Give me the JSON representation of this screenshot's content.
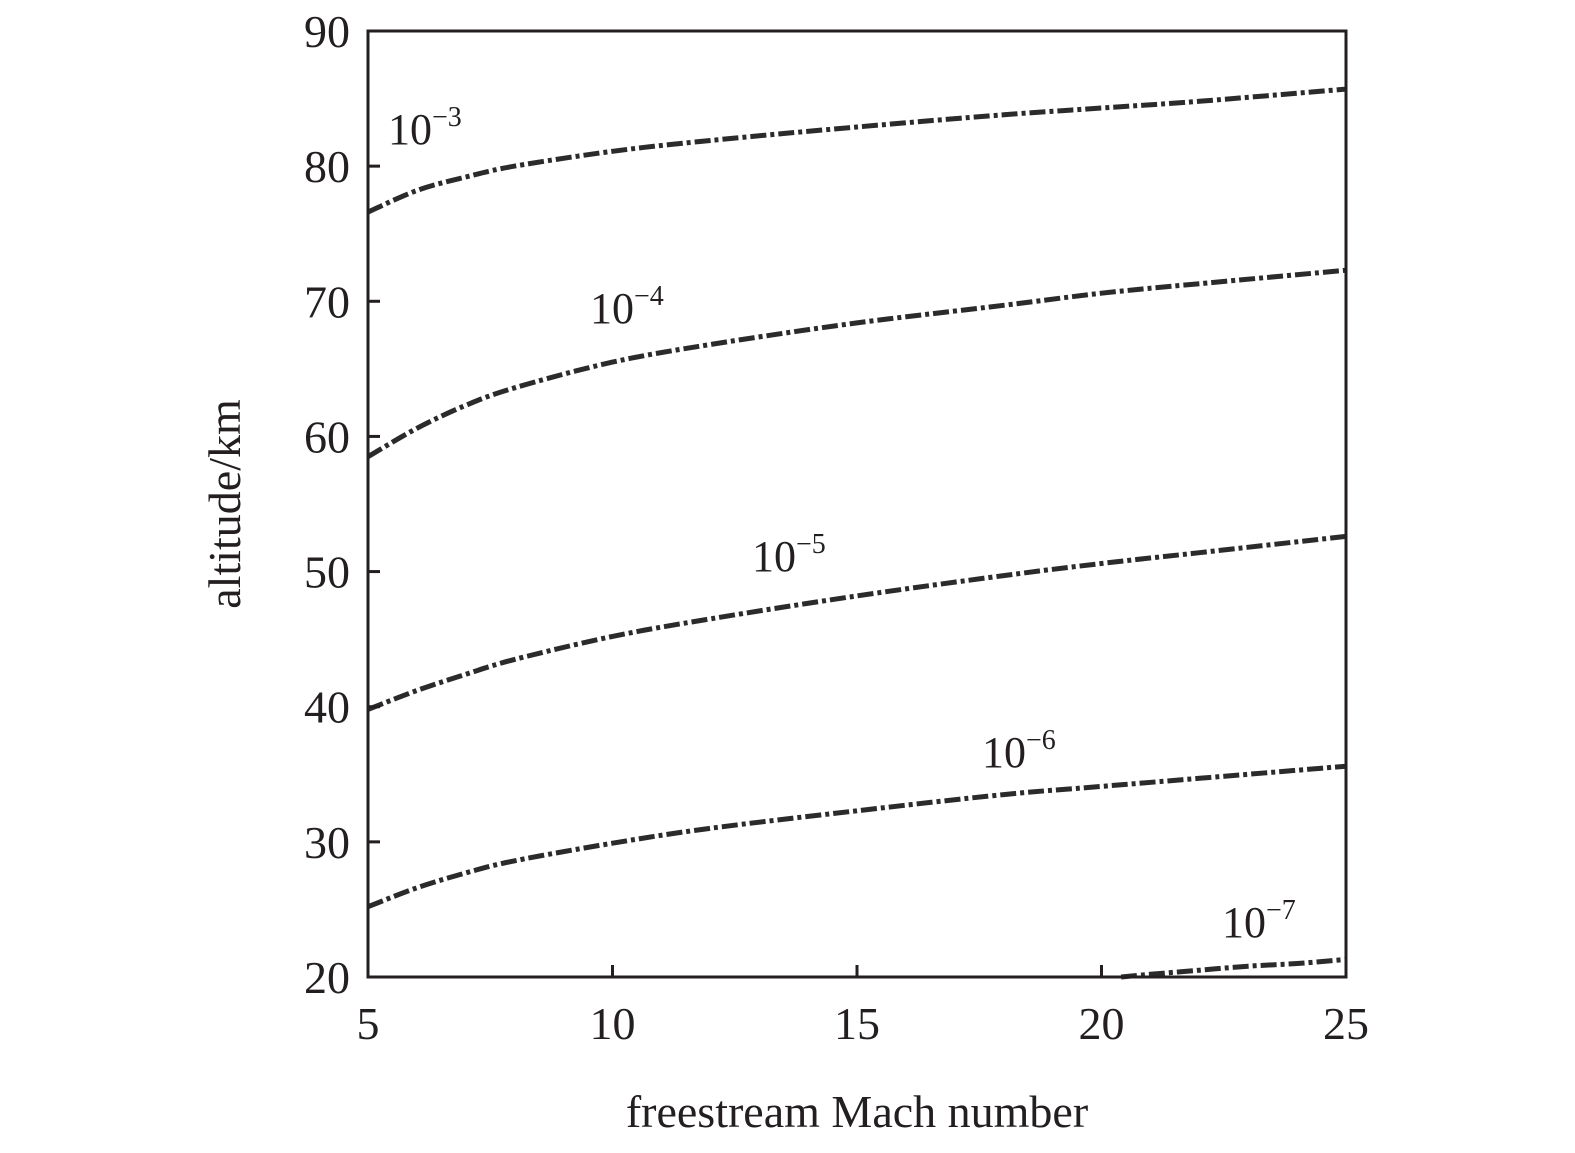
{
  "chart_data": {
    "type": "line",
    "xlabel": "freestream Mach number",
    "ylabel": "altitude/km",
    "xlim": [
      5,
      25
    ],
    "ylim": [
      20,
      90
    ],
    "xticks": [
      5,
      10,
      15,
      20,
      25
    ],
    "yticks": [
      20,
      30,
      40,
      50,
      60,
      70,
      80,
      90
    ],
    "grid": false,
    "line_color": "#2b2b2b",
    "series": [
      {
        "name": "10-3",
        "label_base": "10",
        "label_exp": "−3",
        "x": [
          5,
          6,
          7,
          8,
          10,
          12,
          15,
          18,
          20,
          22,
          25
        ],
        "y": [
          76.6,
          78.2,
          79.2,
          80.0,
          81.1,
          81.9,
          82.9,
          83.8,
          84.3,
          84.8,
          85.7
        ]
      },
      {
        "name": "10-4",
        "label_base": "10",
        "label_exp": "−4",
        "x": [
          5,
          6,
          7,
          8,
          10,
          12,
          15,
          18,
          20,
          22,
          25
        ],
        "y": [
          58.5,
          60.6,
          62.3,
          63.6,
          65.5,
          66.8,
          68.4,
          69.7,
          70.6,
          71.3,
          72.3
        ]
      },
      {
        "name": "10-5",
        "label_base": "10",
        "label_exp": "−5",
        "x": [
          5,
          6,
          7,
          8,
          10,
          12,
          15,
          18,
          20,
          22,
          25
        ],
        "y": [
          39.8,
          41.2,
          42.4,
          43.5,
          45.2,
          46.5,
          48.2,
          49.7,
          50.6,
          51.4,
          52.6
        ]
      },
      {
        "name": "10-6",
        "label_base": "10",
        "label_exp": "−6",
        "x": [
          5,
          6,
          7,
          8,
          10,
          12,
          15,
          18,
          20,
          22,
          25
        ],
        "y": [
          25.2,
          26.6,
          27.7,
          28.6,
          29.9,
          31.0,
          32.3,
          33.5,
          34.1,
          34.7,
          35.6
        ]
      },
      {
        "name": "10-7",
        "label_base": "10",
        "label_exp": "−7",
        "x": [
          20.4,
          21,
          22,
          23,
          24,
          25
        ],
        "y": [
          20.0,
          20.2,
          20.5,
          20.8,
          21.0,
          21.3
        ]
      }
    ]
  }
}
